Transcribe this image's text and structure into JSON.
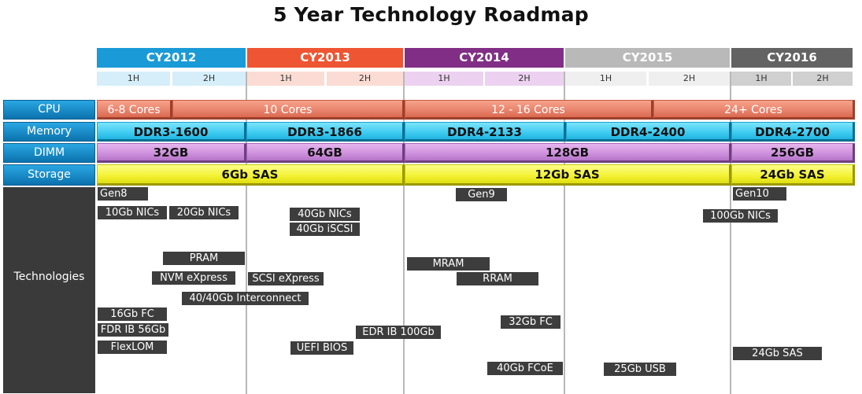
{
  "title": "5 Year Technology Roadmap",
  "years": [
    {
      "label": "CY2012",
      "color": "#1a9ad6",
      "half_bg": "#d5eef9"
    },
    {
      "label": "CY2013",
      "color": "#ee5532",
      "half_bg": "#fbdcd4"
    },
    {
      "label": "CY2014",
      "color": "#812f86",
      "half_bg": "#ecd2f0"
    },
    {
      "label": "CY2015",
      "color": "#b9b9b9",
      "half_bg": "#efefef"
    },
    {
      "label": "CY2016",
      "color": "#636363",
      "half_bg": "#d0d0d0"
    }
  ],
  "halves": [
    "1H",
    "2H"
  ],
  "rows": {
    "cpu": "CPU",
    "memory": "Memory",
    "dimm": "DIMM",
    "storage": "Storage",
    "technologies": "Technologies"
  },
  "cpu": [
    "6-8 Cores",
    "10 Cores",
    "12 - 16 Cores",
    "24+ Cores"
  ],
  "memory": [
    "DDR3-1600",
    "DDR3-1866",
    "DDR4-2133",
    "DDR4-2400",
    "DDR4-2700"
  ],
  "dimm": [
    "32GB",
    "64GB",
    "128GB",
    "256GB"
  ],
  "storage": [
    "6Gb SAS",
    "12Gb SAS",
    "24Gb SAS"
  ],
  "technologies": [
    "Gen8",
    "10Gb NICs",
    "20Gb NICs",
    "40Gb NICs",
    "40Gb iSCSI",
    "Gen9",
    "Gen10",
    "100Gb NICs",
    "PRAM",
    "MRAM",
    "NVM eXpress",
    "SCSI eXpress",
    "RRAM",
    "40/40Gb Interconnect",
    "16Gb FC",
    "FDR IB 56Gb",
    "EDR IB 100Gb",
    "32Gb FC",
    "FlexLOM",
    "UEFI BIOS",
    "24Gb SAS",
    "40Gb FCoE",
    "25Gb USB"
  ]
}
